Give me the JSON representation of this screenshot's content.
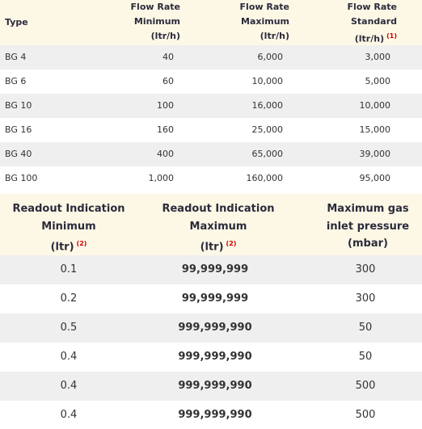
{
  "table1": {
    "headers": [
      {
        "lines": [
          "Type"
        ]
      },
      {
        "lines": [
          "Flow Rate",
          "Minimum",
          "(ltr/h)"
        ]
      },
      {
        "lines": [
          "Flow Rate",
          "Maximum",
          "(ltr/h)"
        ]
      },
      {
        "lines": [
          "Flow Rate",
          "Standard",
          "(ltr/h)"
        ],
        "note": "(1)"
      }
    ],
    "rows": [
      [
        "BG 4",
        "40",
        "6,000",
        "3,000"
      ],
      [
        "BG 6",
        "60",
        "10,000",
        "5,000"
      ],
      [
        "BG 10",
        "100",
        "16,000",
        "10,000"
      ],
      [
        "BG 16",
        "160",
        "25,000",
        "15,000"
      ],
      [
        "BG 40",
        "400",
        "65,000",
        "39,000"
      ],
      [
        "BG 100",
        "1,000",
        "160,000",
        "95,000"
      ]
    ]
  },
  "table2": {
    "headers": [
      {
        "lines": [
          "Readout Indication",
          "Minimum",
          "(ltr)"
        ],
        "note": "(2)"
      },
      {
        "lines": [
          "Readout Indication",
          "Maximum",
          "(ltr)"
        ],
        "note": "(2)"
      },
      {
        "lines": [
          "Maximum gas",
          "inlet pressure",
          "(mbar)"
        ]
      }
    ],
    "rows": [
      [
        "0.1",
        "99,999,999",
        "300"
      ],
      [
        "0.2",
        "99,999,999",
        "300"
      ],
      [
        "0.5",
        "999,999,990",
        "50"
      ],
      [
        "0.4",
        "999,999,990",
        "50"
      ],
      [
        "0.4",
        "999,999,990",
        "500"
      ],
      [
        "0.4",
        "999,999,990",
        "500"
      ]
    ]
  }
}
